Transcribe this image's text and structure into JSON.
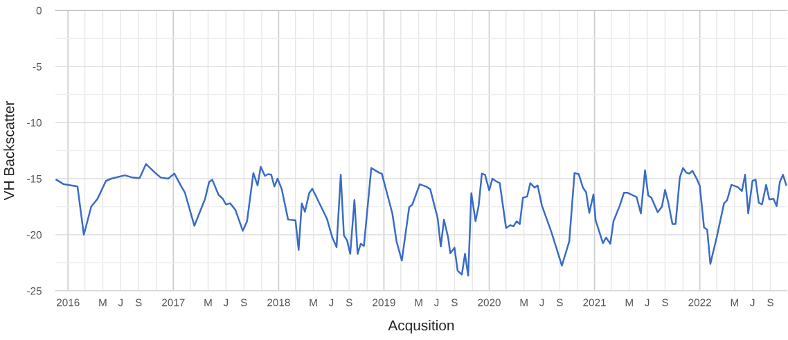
{
  "chart_data": {
    "type": "line",
    "xlabel": "Acqusition",
    "ylabel": "VH Backscatter",
    "x": [
      2015.89,
      2015.96,
      2016.09,
      2016.15,
      2016.22,
      2016.28,
      2016.36,
      2016.41,
      2016.54,
      2016.61,
      2016.68,
      2016.74,
      2016.83,
      2016.88,
      2016.95,
      2017.01,
      2017.07,
      2017.11,
      2017.2,
      2017.28,
      2017.3,
      2017.34,
      2017.37,
      2017.43,
      2017.47,
      2017.5,
      2017.54,
      2017.59,
      2017.66,
      2017.7,
      2017.76,
      2017.8,
      2017.83,
      2017.87,
      2017.9,
      2017.93,
      2017.96,
      2017.99,
      2018.03,
      2018.09,
      2018.16,
      2018.19,
      2018.22,
      2018.25,
      2018.29,
      2018.32,
      2018.46,
      2018.51,
      2018.55,
      2018.59,
      2018.62,
      2018.65,
      2018.68,
      2018.72,
      2018.75,
      2018.78,
      2018.81,
      2018.88,
      2018.96,
      2018.98,
      2019.08,
      2019.12,
      2019.17,
      2019.24,
      2019.27,
      2019.34,
      2019.4,
      2019.44,
      2019.51,
      2019.54,
      2019.57,
      2019.61,
      2019.63,
      2019.67,
      2019.7,
      2019.74,
      2019.77,
      2019.8,
      2019.83,
      2019.87,
      2019.9,
      2019.93,
      2019.96,
      2020.0,
      2020.03,
      2020.06,
      2020.1,
      2020.16,
      2020.2,
      2020.23,
      2020.26,
      2020.29,
      2020.32,
      2020.36,
      2020.39,
      2020.43,
      2020.46,
      2020.5,
      2020.59,
      2020.69,
      2020.76,
      2020.81,
      2020.85,
      2020.89,
      2020.92,
      2020.95,
      2020.99,
      2021.01,
      2021.08,
      2021.11,
      2021.15,
      2021.18,
      2021.24,
      2021.28,
      2021.31,
      2021.4,
      2021.44,
      2021.48,
      2021.51,
      2021.54,
      2021.6,
      2021.64,
      2021.67,
      2021.7,
      2021.74,
      2021.77,
      2021.81,
      2021.84,
      2021.87,
      2021.9,
      2021.93,
      2021.97,
      2022.0,
      2022.04,
      2022.07,
      2022.1,
      2022.16,
      2022.23,
      2022.26,
      2022.3,
      2022.36,
      2022.4,
      2022.43,
      2022.46,
      2022.5,
      2022.53,
      2022.56,
      2022.59,
      2022.63,
      2022.66,
      2022.7,
      2022.73,
      2022.76,
      2022.79,
      2022.82
    ],
    "series": [
      {
        "color": "#3a6cc6",
        "values": [
          -15.1,
          -15.5,
          -15.7,
          -20.0,
          -17.5,
          -16.8,
          -15.2,
          -15.0,
          -14.7,
          -14.9,
          -14.95,
          -13.7,
          -14.5,
          -14.9,
          -15.0,
          -14.55,
          -15.6,
          -16.25,
          -19.2,
          -17.3,
          -16.85,
          -15.3,
          -15.1,
          -16.45,
          -16.8,
          -17.3,
          -17.2,
          -17.8,
          -19.65,
          -18.8,
          -14.5,
          -15.6,
          -13.95,
          -14.75,
          -14.6,
          -14.65,
          -15.7,
          -15.0,
          -15.95,
          -18.65,
          -18.7,
          -21.35,
          -17.2,
          -17.95,
          -16.3,
          -15.9,
          -18.6,
          -20.25,
          -21.1,
          -14.65,
          -20.05,
          -20.5,
          -21.7,
          -16.9,
          -21.7,
          -20.8,
          -21.0,
          -14.05,
          -14.5,
          -14.55,
          -18.1,
          -20.6,
          -22.3,
          -17.55,
          -17.3,
          -15.5,
          -15.7,
          -15.95,
          -18.5,
          -21.05,
          -18.65,
          -20.25,
          -21.65,
          -21.15,
          -23.2,
          -23.55,
          -21.7,
          -23.65,
          -16.3,
          -18.8,
          -17.4,
          -14.55,
          -14.65,
          -16.05,
          -15.0,
          -15.2,
          -15.4,
          -19.4,
          -19.15,
          -19.25,
          -18.8,
          -19.05,
          -16.7,
          -16.6,
          -15.4,
          -15.8,
          -15.6,
          -17.4,
          -19.75,
          -22.75,
          -20.6,
          -14.5,
          -14.6,
          -15.8,
          -16.2,
          -18.05,
          -16.4,
          -18.7,
          -20.75,
          -20.25,
          -20.8,
          -18.8,
          -17.4,
          -16.25,
          -16.25,
          -16.65,
          -18.1,
          -14.25,
          -16.5,
          -16.7,
          -18.0,
          -17.5,
          -16.0,
          -17.1,
          -19.05,
          -19.05,
          -14.9,
          -14.05,
          -14.45,
          -14.55,
          -14.3,
          -15.0,
          -15.65,
          -19.35,
          -19.55,
          -22.6,
          -20.25,
          -17.2,
          -16.9,
          -15.55,
          -15.75,
          -16.1,
          -14.65,
          -18.1,
          -15.2,
          -15.1,
          -17.15,
          -17.3,
          -15.55,
          -16.85,
          -16.8,
          -17.45,
          -15.3,
          -14.65,
          -15.55
        ]
      }
    ],
    "xlim": [
      2015.88,
      2022.83
    ],
    "xticks": [
      {
        "value": 2016,
        "label": "2016"
      },
      {
        "value": 2016.16,
        "label": null
      },
      {
        "value": 2016.33,
        "label": "M"
      },
      {
        "value": 2016.5,
        "label": "J"
      },
      {
        "value": 2016.67,
        "label": "S"
      },
      {
        "value": 2016.84,
        "label": null
      },
      {
        "value": 2017,
        "label": "2017"
      },
      {
        "value": 2017.16,
        "label": null
      },
      {
        "value": 2017.33,
        "label": "M"
      },
      {
        "value": 2017.5,
        "label": "J"
      },
      {
        "value": 2017.67,
        "label": "S"
      },
      {
        "value": 2017.84,
        "label": null
      },
      {
        "value": 2018,
        "label": "2018"
      },
      {
        "value": 2018.16,
        "label": null
      },
      {
        "value": 2018.33,
        "label": "M"
      },
      {
        "value": 2018.5,
        "label": "J"
      },
      {
        "value": 2018.67,
        "label": "S"
      },
      {
        "value": 2018.84,
        "label": null
      },
      {
        "value": 2019,
        "label": "2019"
      },
      {
        "value": 2019.16,
        "label": null
      },
      {
        "value": 2019.33,
        "label": "M"
      },
      {
        "value": 2019.5,
        "label": "J"
      },
      {
        "value": 2019.67,
        "label": "S"
      },
      {
        "value": 2019.84,
        "label": null
      },
      {
        "value": 2020,
        "label": "2020"
      },
      {
        "value": 2020.16,
        "label": null
      },
      {
        "value": 2020.33,
        "label": "M"
      },
      {
        "value": 2020.5,
        "label": "J"
      },
      {
        "value": 2020.67,
        "label": "S"
      },
      {
        "value": 2020.84,
        "label": null
      },
      {
        "value": 2021,
        "label": "2021"
      },
      {
        "value": 2021.16,
        "label": null
      },
      {
        "value": 2021.33,
        "label": "M"
      },
      {
        "value": 2021.5,
        "label": "J"
      },
      {
        "value": 2021.67,
        "label": "S"
      },
      {
        "value": 2021.84,
        "label": null
      },
      {
        "value": 2022,
        "label": "2022"
      },
      {
        "value": 2022.16,
        "label": null
      },
      {
        "value": 2022.33,
        "label": "M"
      },
      {
        "value": 2022.5,
        "label": "J"
      },
      {
        "value": 2022.67,
        "label": "S"
      }
    ],
    "ylim": [
      -25,
      0
    ],
    "yticks": [
      -25,
      {
        "value": -22.5,
        "label": null
      },
      -20,
      {
        "value": -17.5,
        "label": null
      },
      -15,
      {
        "value": -12.5,
        "label": null
      },
      -10,
      {
        "value": -7.5,
        "label": null
      },
      -5,
      {
        "value": -2.5,
        "label": null
      },
      0
    ],
    "grid": true,
    "line_style": "solid",
    "marker": "none"
  }
}
